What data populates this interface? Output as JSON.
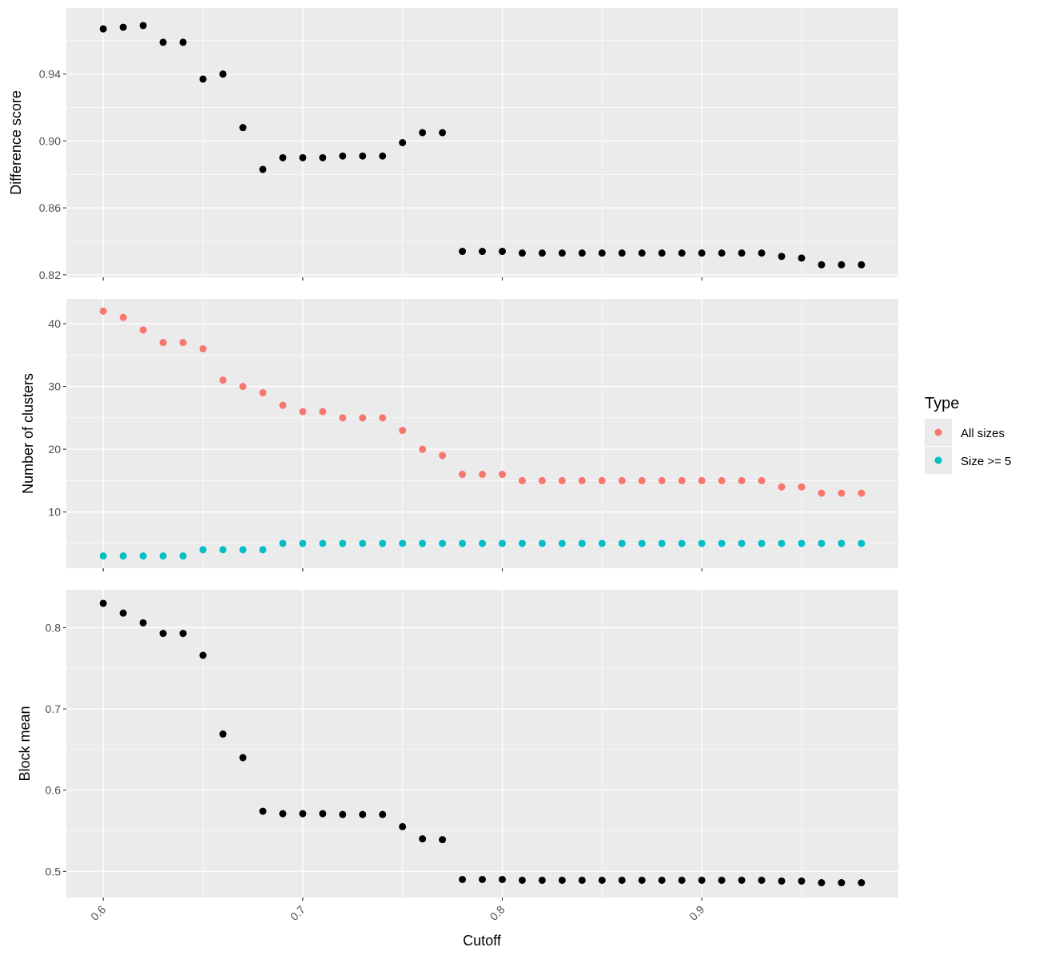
{
  "colors": {
    "panel_bg": "#ebebeb",
    "grid": "#ffffff",
    "black": "#000000",
    "all_sizes": "#f8766d",
    "size_ge5": "#00bfc4"
  },
  "legend": {
    "title": "Type",
    "items": [
      {
        "label": "All sizes",
        "color": "#f8766d"
      },
      {
        "label": "Size >= 5",
        "color": "#00bfc4"
      }
    ]
  },
  "chart_data": [
    {
      "type": "scatter",
      "ylabel": "Difference score",
      "xlim": [
        0.5815,
        0.9985
      ],
      "ylim": [
        0.8185,
        0.9795
      ],
      "yticks": [
        0.82,
        0.86,
        0.9,
        0.94
      ],
      "ytick_labels": [
        "0.82",
        "0.86",
        "0.90",
        "0.94"
      ],
      "series": [
        {
          "color": "#000000",
          "x": [
            0.6,
            0.61,
            0.62,
            0.63,
            0.64,
            0.65,
            0.66,
            0.67,
            0.68,
            0.69,
            0.7,
            0.71,
            0.72,
            0.73,
            0.74,
            0.75,
            0.76,
            0.77,
            0.78,
            0.79,
            0.8,
            0.81,
            0.82,
            0.83,
            0.84,
            0.85,
            0.86,
            0.87,
            0.88,
            0.89,
            0.9,
            0.91,
            0.92,
            0.93,
            0.94,
            0.95,
            0.96,
            0.97,
            0.98
          ],
          "y": [
            0.967,
            0.968,
            0.969,
            0.959,
            0.959,
            0.937,
            0.94,
            0.908,
            0.883,
            0.89,
            0.89,
            0.89,
            0.891,
            0.891,
            0.891,
            0.899,
            0.905,
            0.905,
            0.834,
            0.834,
            0.834,
            0.833,
            0.833,
            0.833,
            0.833,
            0.833,
            0.833,
            0.833,
            0.833,
            0.833,
            0.833,
            0.833,
            0.833,
            0.833,
            0.831,
            0.83,
            0.826,
            0.826,
            0.826
          ]
        }
      ]
    },
    {
      "type": "scatter",
      "ylabel": "Number of clusters",
      "xlim": [
        0.5815,
        0.9985
      ],
      "ylim": [
        1.05,
        43.95
      ],
      "yticks": [
        10,
        20,
        30,
        40
      ],
      "ytick_labels": [
        "10",
        "20",
        "30",
        "40"
      ],
      "series": [
        {
          "name": "All sizes",
          "color": "#f8766d",
          "x": [
            0.6,
            0.61,
            0.62,
            0.63,
            0.64,
            0.65,
            0.66,
            0.67,
            0.68,
            0.69,
            0.7,
            0.71,
            0.72,
            0.73,
            0.74,
            0.75,
            0.76,
            0.77,
            0.78,
            0.79,
            0.8,
            0.81,
            0.82,
            0.83,
            0.84,
            0.85,
            0.86,
            0.87,
            0.88,
            0.89,
            0.9,
            0.91,
            0.92,
            0.93,
            0.94,
            0.95,
            0.96,
            0.97,
            0.98
          ],
          "y": [
            42,
            41,
            39,
            37,
            37,
            36,
            31,
            30,
            29,
            27,
            26,
            26,
            25,
            25,
            25,
            23,
            20,
            19,
            16,
            16,
            16,
            15,
            15,
            15,
            15,
            15,
            15,
            15,
            15,
            15,
            15,
            15,
            15,
            15,
            14,
            14,
            13,
            13,
            13
          ]
        },
        {
          "name": "Size >= 5",
          "color": "#00bfc4",
          "x": [
            0.6,
            0.61,
            0.62,
            0.63,
            0.64,
            0.65,
            0.66,
            0.67,
            0.68,
            0.69,
            0.7,
            0.71,
            0.72,
            0.73,
            0.74,
            0.75,
            0.76,
            0.77,
            0.78,
            0.79,
            0.8,
            0.81,
            0.82,
            0.83,
            0.84,
            0.85,
            0.86,
            0.87,
            0.88,
            0.89,
            0.9,
            0.91,
            0.92,
            0.93,
            0.94,
            0.95,
            0.96,
            0.97,
            0.98
          ],
          "y": [
            3,
            3,
            3,
            3,
            3,
            4,
            4,
            4,
            4,
            5,
            5,
            5,
            5,
            5,
            5,
            5,
            5,
            5,
            5,
            5,
            5,
            5,
            5,
            5,
            5,
            5,
            5,
            5,
            5,
            5,
            5,
            5,
            5,
            5,
            5,
            5,
            5,
            5,
            5
          ]
        }
      ]
    },
    {
      "type": "scatter",
      "ylabel": "Block mean",
      "xlabel": "Cutoff",
      "xlim": [
        0.5815,
        0.9985
      ],
      "ylim": [
        0.4678,
        0.8467
      ],
      "yticks": [
        0.5,
        0.6,
        0.7,
        0.8
      ],
      "ytick_labels": [
        "0.5",
        "0.6",
        "0.7",
        "0.8"
      ],
      "xticks": [
        0.6,
        0.7,
        0.8,
        0.9
      ],
      "xtick_labels": [
        "0.6",
        "0.7",
        "0.8",
        "0.9"
      ],
      "series": [
        {
          "color": "#000000",
          "x": [
            0.6,
            0.61,
            0.62,
            0.63,
            0.64,
            0.65,
            0.66,
            0.67,
            0.68,
            0.69,
            0.7,
            0.71,
            0.72,
            0.73,
            0.74,
            0.75,
            0.76,
            0.77,
            0.78,
            0.79,
            0.8,
            0.81,
            0.82,
            0.83,
            0.84,
            0.85,
            0.86,
            0.87,
            0.88,
            0.89,
            0.9,
            0.91,
            0.92,
            0.93,
            0.94,
            0.95,
            0.96,
            0.97,
            0.98
          ],
          "y": [
            0.83,
            0.818,
            0.806,
            0.793,
            0.793,
            0.766,
            0.669,
            0.64,
            0.574,
            0.571,
            0.571,
            0.571,
            0.57,
            0.57,
            0.57,
            0.555,
            0.54,
            0.539,
            0.49,
            0.49,
            0.49,
            0.489,
            0.489,
            0.489,
            0.489,
            0.489,
            0.489,
            0.489,
            0.489,
            0.489,
            0.489,
            0.489,
            0.489,
            0.489,
            0.488,
            0.488,
            0.486,
            0.486,
            0.486
          ]
        }
      ]
    }
  ]
}
